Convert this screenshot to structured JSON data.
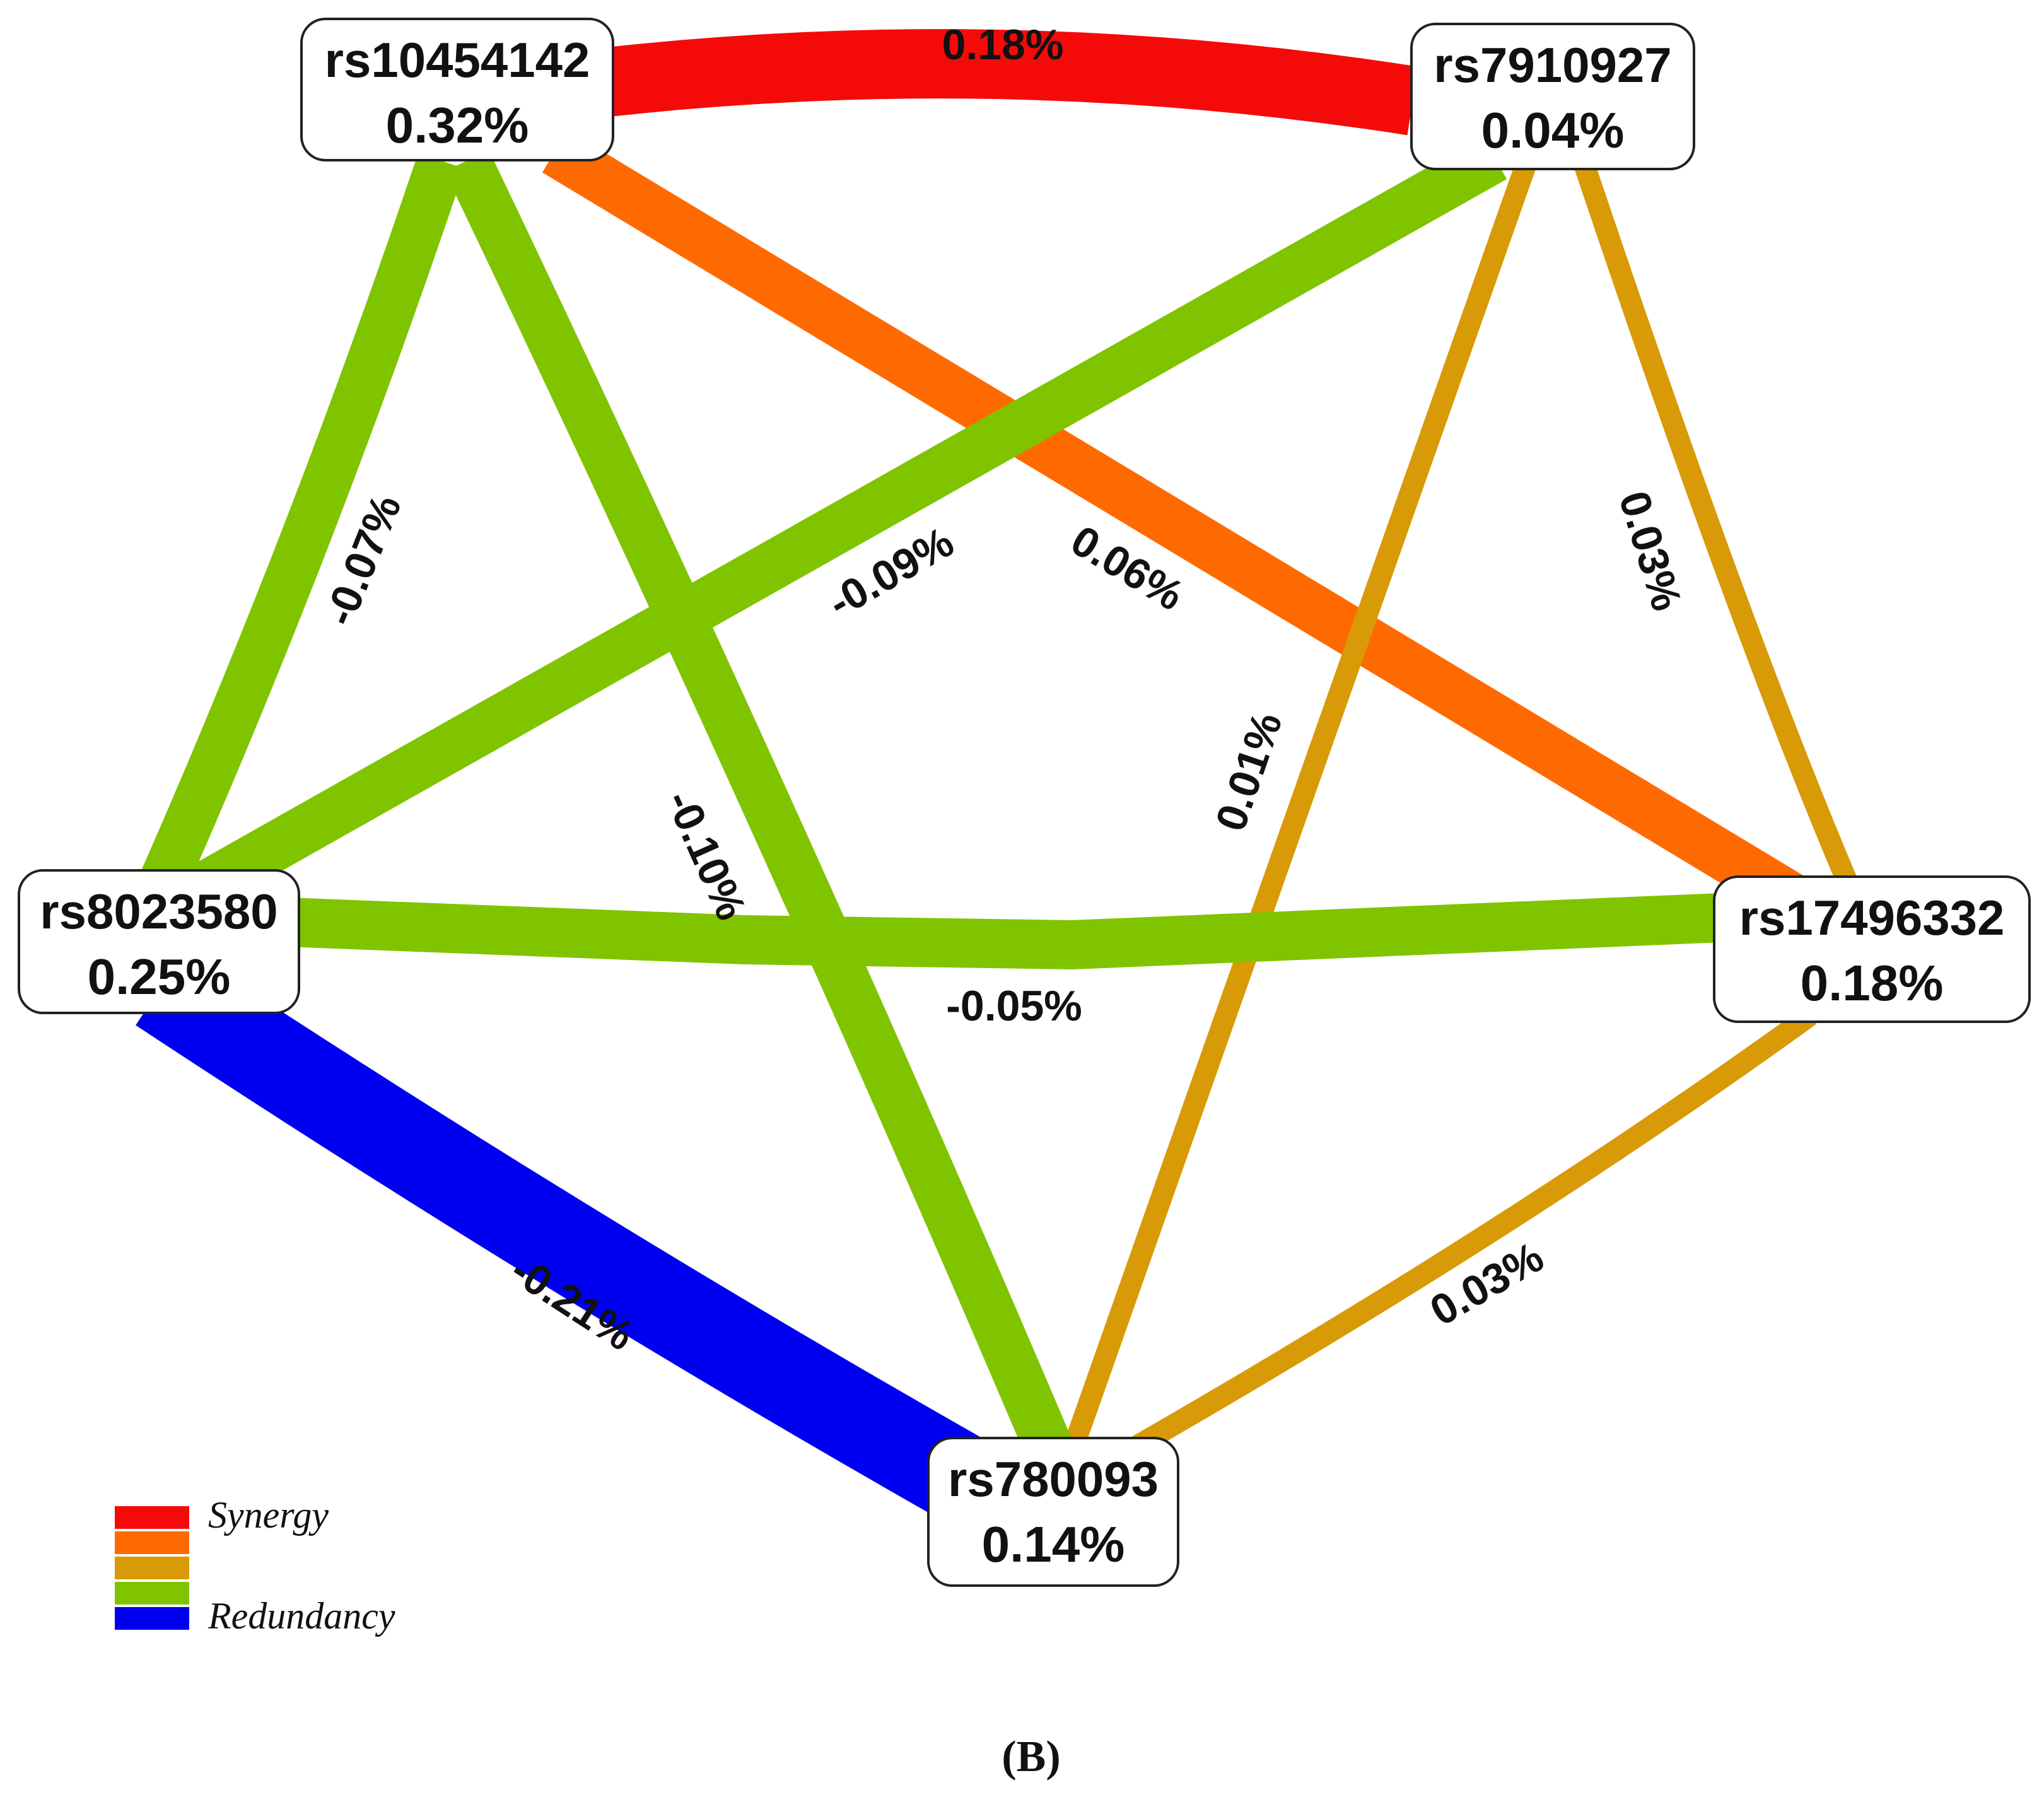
{
  "colors": {
    "synergy": "#f50a0a",
    "synergy_weak": "#ff6a00",
    "neutral": "#d99a08",
    "redundancy_weak": "#80c400",
    "redundancy": "#0000f0"
  },
  "nodes": [
    {
      "id": "rs10454142",
      "name": "rs10454142",
      "value": "0.32%"
    },
    {
      "id": "rs7910927",
      "name": "rs7910927",
      "value": "0.04%"
    },
    {
      "id": "rs8023580",
      "name": "rs8023580",
      "value": "0.25%"
    },
    {
      "id": "rs17496332",
      "name": "rs17496332",
      "value": "0.18%"
    },
    {
      "id": "rs780093",
      "name": "rs780093",
      "value": "0.14%"
    }
  ],
  "edges": [
    {
      "from": "rs10454142",
      "to": "rs7910927",
      "label": "0.18%",
      "color": "synergy"
    },
    {
      "from": "rs10454142",
      "to": "rs17496332",
      "label": "0.06%",
      "color": "synergy_weak"
    },
    {
      "from": "rs7910927",
      "to": "rs17496332",
      "label": "0.03%",
      "color": "neutral"
    },
    {
      "from": "rs7910927",
      "to": "rs780093",
      "label": "0.01%",
      "color": "neutral"
    },
    {
      "from": "rs17496332",
      "to": "rs780093",
      "label": "0.03%",
      "color": "neutral"
    },
    {
      "from": "rs10454142",
      "to": "rs8023580",
      "label": "-0.07%",
      "color": "redundancy_weak"
    },
    {
      "from": "rs10454142",
      "to": "rs780093",
      "label": "-0.10%",
      "color": "redundancy_weak"
    },
    {
      "from": "rs7910927",
      "to": "rs8023580",
      "label": "-0.09%",
      "color": "redundancy_weak"
    },
    {
      "from": "rs8023580",
      "to": "rs17496332",
      "label": "-0.05%",
      "color": "redundancy_weak"
    },
    {
      "from": "rs8023580",
      "to": "rs780093",
      "label": "-0.21%",
      "color": "redundancy"
    }
  ],
  "legend": {
    "items": [
      {
        "color": "synergy",
        "label": "Synergy"
      },
      {
        "color": "synergy_weak",
        "label": ""
      },
      {
        "color": "neutral",
        "label": ""
      },
      {
        "color": "redundancy_weak",
        "label": ""
      },
      {
        "color": "redundancy",
        "label": "Redundancy"
      }
    ]
  },
  "caption": "(B)"
}
